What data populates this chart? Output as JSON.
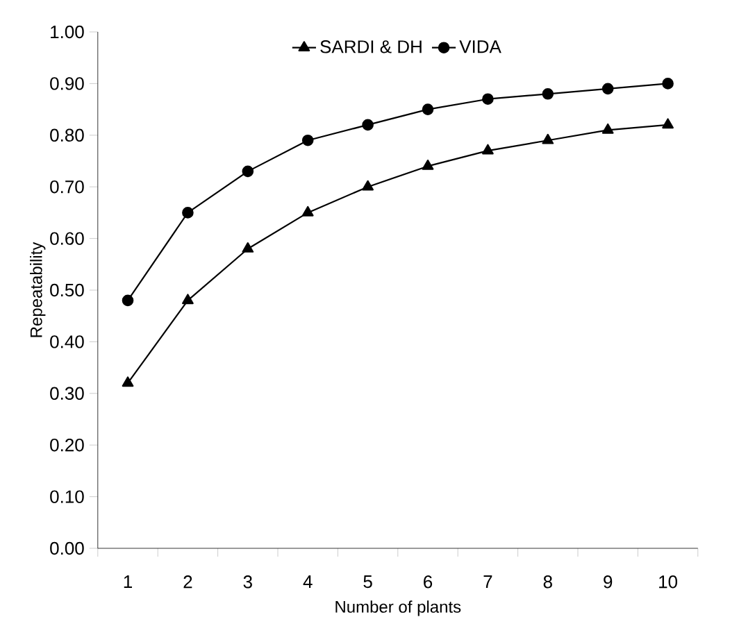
{
  "chart_data": {
    "type": "line",
    "xlabel": "Number of plants",
    "ylabel": "Repeatability",
    "categories": [
      "1",
      "2",
      "3",
      "4",
      "5",
      "6",
      "7",
      "8",
      "9",
      "10"
    ],
    "series": [
      {
        "name": "SARDI & DH",
        "color": "#000000",
        "marker": "triangle",
        "values": [
          0.32,
          0.48,
          0.58,
          0.65,
          0.7,
          0.74,
          0.77,
          0.79,
          0.81,
          0.82
        ]
      },
      {
        "name": "VIDA",
        "color": "#000000",
        "marker": "circle",
        "values": [
          0.48,
          0.65,
          0.73,
          0.79,
          0.82,
          0.85,
          0.87,
          0.88,
          0.89,
          0.9
        ]
      }
    ],
    "ylim": [
      0,
      1
    ],
    "yticks": [
      {
        "value": 0,
        "label": "0.00"
      },
      {
        "value": 0.1,
        "label": "0.10"
      },
      {
        "value": 0.2,
        "label": "0.20"
      },
      {
        "value": 0.3,
        "label": "0.30"
      },
      {
        "value": 0.4,
        "label": "0.40"
      },
      {
        "value": 0.5,
        "label": "0.50"
      },
      {
        "value": 0.6,
        "label": "0.60"
      },
      {
        "value": 0.7,
        "label": "0.70"
      },
      {
        "value": 0.8,
        "label": "0.80"
      },
      {
        "value": 0.9,
        "label": "0.90"
      },
      {
        "value": 1,
        "label": "1.00"
      }
    ],
    "grid": false,
    "legend": "top",
    "line_style": "solid"
  }
}
